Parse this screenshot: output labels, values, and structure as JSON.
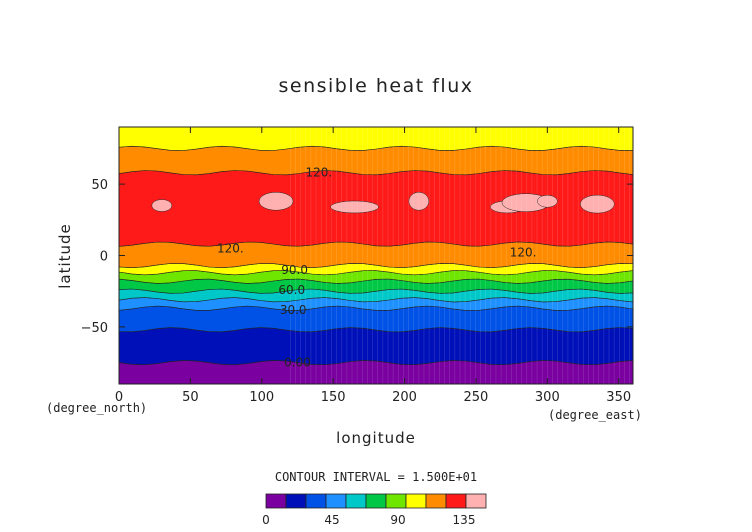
{
  "chart_data": {
    "type": "heatmap",
    "title": "sensible heat flux",
    "xlabel": "longitude",
    "ylabel": "latitude",
    "x_unit": "(degree_east)",
    "y_unit": "(degree_north)",
    "xlim": [
      0,
      360
    ],
    "ylim": [
      -90,
      90
    ],
    "x_ticks": [
      "0",
      "50",
      "100",
      "150",
      "200",
      "250",
      "300",
      "350"
    ],
    "y_ticks": [
      "50",
      "0",
      "−50"
    ],
    "x_tick_values": [
      0,
      50,
      100,
      150,
      200,
      250,
      300,
      350
    ],
    "y_tick_values": [
      50,
      0,
      -50
    ],
    "contour_interval_label": "CONTOUR INTERVAL = 1.500E+01",
    "colorbar": {
      "levels": [
        0,
        15,
        30,
        45,
        60,
        75,
        90,
        105,
        120,
        135,
        150
      ],
      "colors": [
        "#7a00a0",
        "#0010b8",
        "#0052e6",
        "#1e90ff",
        "#00c8c8",
        "#00c846",
        "#6ee600",
        "#ffff00",
        "#ff8c00",
        "#ff1a1a",
        "#ffb0b0"
      ],
      "tick_labels": [
        "0",
        "45",
        "90",
        "135"
      ],
      "tick_values": [
        0,
        45,
        90,
        135
      ]
    },
    "bands": [
      {
        "lat_min": -90,
        "lat_max": -75,
        "color": "#7a00a0"
      },
      {
        "lat_min": -75,
        "lat_max": -52,
        "color": "#0010b8"
      },
      {
        "lat_min": -52,
        "lat_max": -37,
        "color": "#0052e6"
      },
      {
        "lat_min": -37,
        "lat_max": -31,
        "color": "#1e90ff"
      },
      {
        "lat_min": -31,
        "lat_max": -25,
        "color": "#00c8c8"
      },
      {
        "lat_min": -25,
        "lat_max": -18,
        "color": "#00c846"
      },
      {
        "lat_min": -18,
        "lat_max": -12,
        "color": "#6ee600"
      },
      {
        "lat_min": -12,
        "lat_max": -7,
        "color": "#ffff00"
      },
      {
        "lat_min": -7,
        "lat_max": 8,
        "color": "#ff8c00"
      },
      {
        "lat_min": 8,
        "lat_max": 58,
        "color": "#ff1a1a"
      },
      {
        "lat_min": 58,
        "lat_max": 75,
        "color": "#ff8c00"
      },
      {
        "lat_min": 75,
        "lat_max": 90,
        "color": "#ffff00"
      }
    ],
    "contour_labels": [
      {
        "text": "120.",
        "lon": 140,
        "lat": 58
      },
      {
        "text": "120.",
        "lon": 78,
        "lat": 5
      },
      {
        "text": "120.",
        "lon": 283,
        "lat": 2
      },
      {
        "text": "90.0",
        "lon": 123,
        "lat": -10
      },
      {
        "text": "60.0",
        "lon": 121,
        "lat": -24
      },
      {
        "text": "30.0",
        "lon": 122,
        "lat": -38
      },
      {
        "text": "0.00",
        "lon": 125,
        "lat": -75
      }
    ]
  }
}
